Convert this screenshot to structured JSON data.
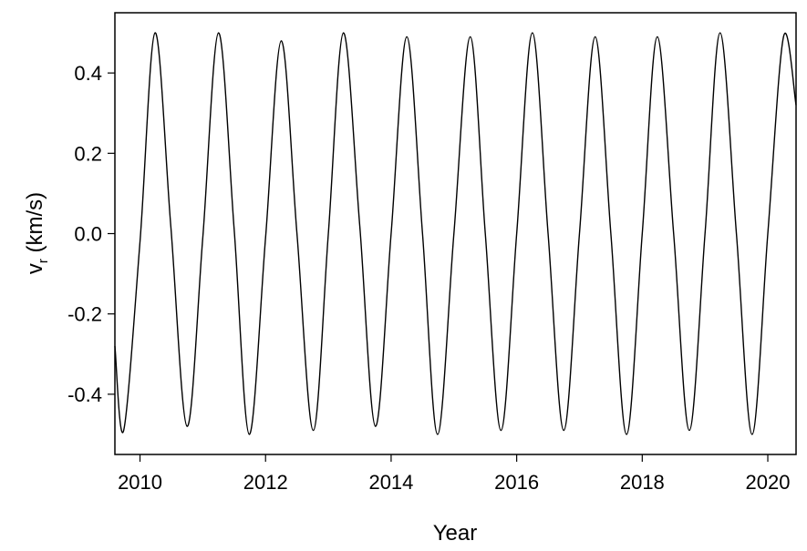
{
  "chart_data": {
    "type": "line",
    "xlabel": "Year",
    "ylabel": "v",
    "ylabel_subscript": "r",
    "ylabel_units": " (km/s)",
    "xlim": [
      2009.6,
      2020.45
    ],
    "ylim": [
      -0.55,
      0.55
    ],
    "x_ticks": [
      2010,
      2012,
      2014,
      2016,
      2018,
      2020
    ],
    "x_tick_labels": [
      "2010",
      "2012",
      "2014",
      "2016",
      "2018",
      "2020"
    ],
    "y_ticks": [
      -0.4,
      -0.2,
      0.0,
      0.2,
      0.4
    ],
    "y_tick_labels": [
      "-0.4",
      "-0.2",
      "0.0",
      "0.2",
      "0.4"
    ],
    "grid": false,
    "line_color": "#000000",
    "series": [
      {
        "x": [
          2009.6,
          2009.74,
          2010.0,
          2010.24,
          2010.49,
          2010.75,
          2011.0,
          2011.25,
          2011.5,
          2011.74,
          2012.0,
          2012.25,
          2012.5,
          2012.76,
          2013.0,
          2013.24,
          2013.5,
          2013.75,
          2014.0,
          2014.25,
          2014.5,
          2014.74,
          2015.0,
          2015.26,
          2015.5,
          2015.75,
          2016.0,
          2016.25,
          2016.5,
          2016.75,
          2017.0,
          2017.25,
          2017.5,
          2017.75,
          2018.0,
          2018.24,
          2018.5,
          2018.75,
          2019.0,
          2019.24,
          2019.5,
          2019.75,
          2020.0,
          2020.25,
          2020.45
        ],
        "y": [
          -0.28,
          -0.49,
          -0.02,
          0.5,
          0.02,
          -0.48,
          -0.01,
          0.5,
          0.01,
          -0.5,
          -0.01,
          0.48,
          0.0,
          -0.49,
          0.0,
          0.5,
          0.02,
          -0.48,
          0.0,
          0.49,
          0.0,
          -0.5,
          0.0,
          0.49,
          0.0,
          -0.49,
          0.0,
          0.5,
          0.0,
          -0.49,
          0.0,
          0.49,
          0.0,
          -0.5,
          0.0,
          0.49,
          0.0,
          -0.49,
          0.0,
          0.5,
          0.0,
          -0.5,
          0.0,
          0.49,
          0.32
        ]
      }
    ]
  }
}
